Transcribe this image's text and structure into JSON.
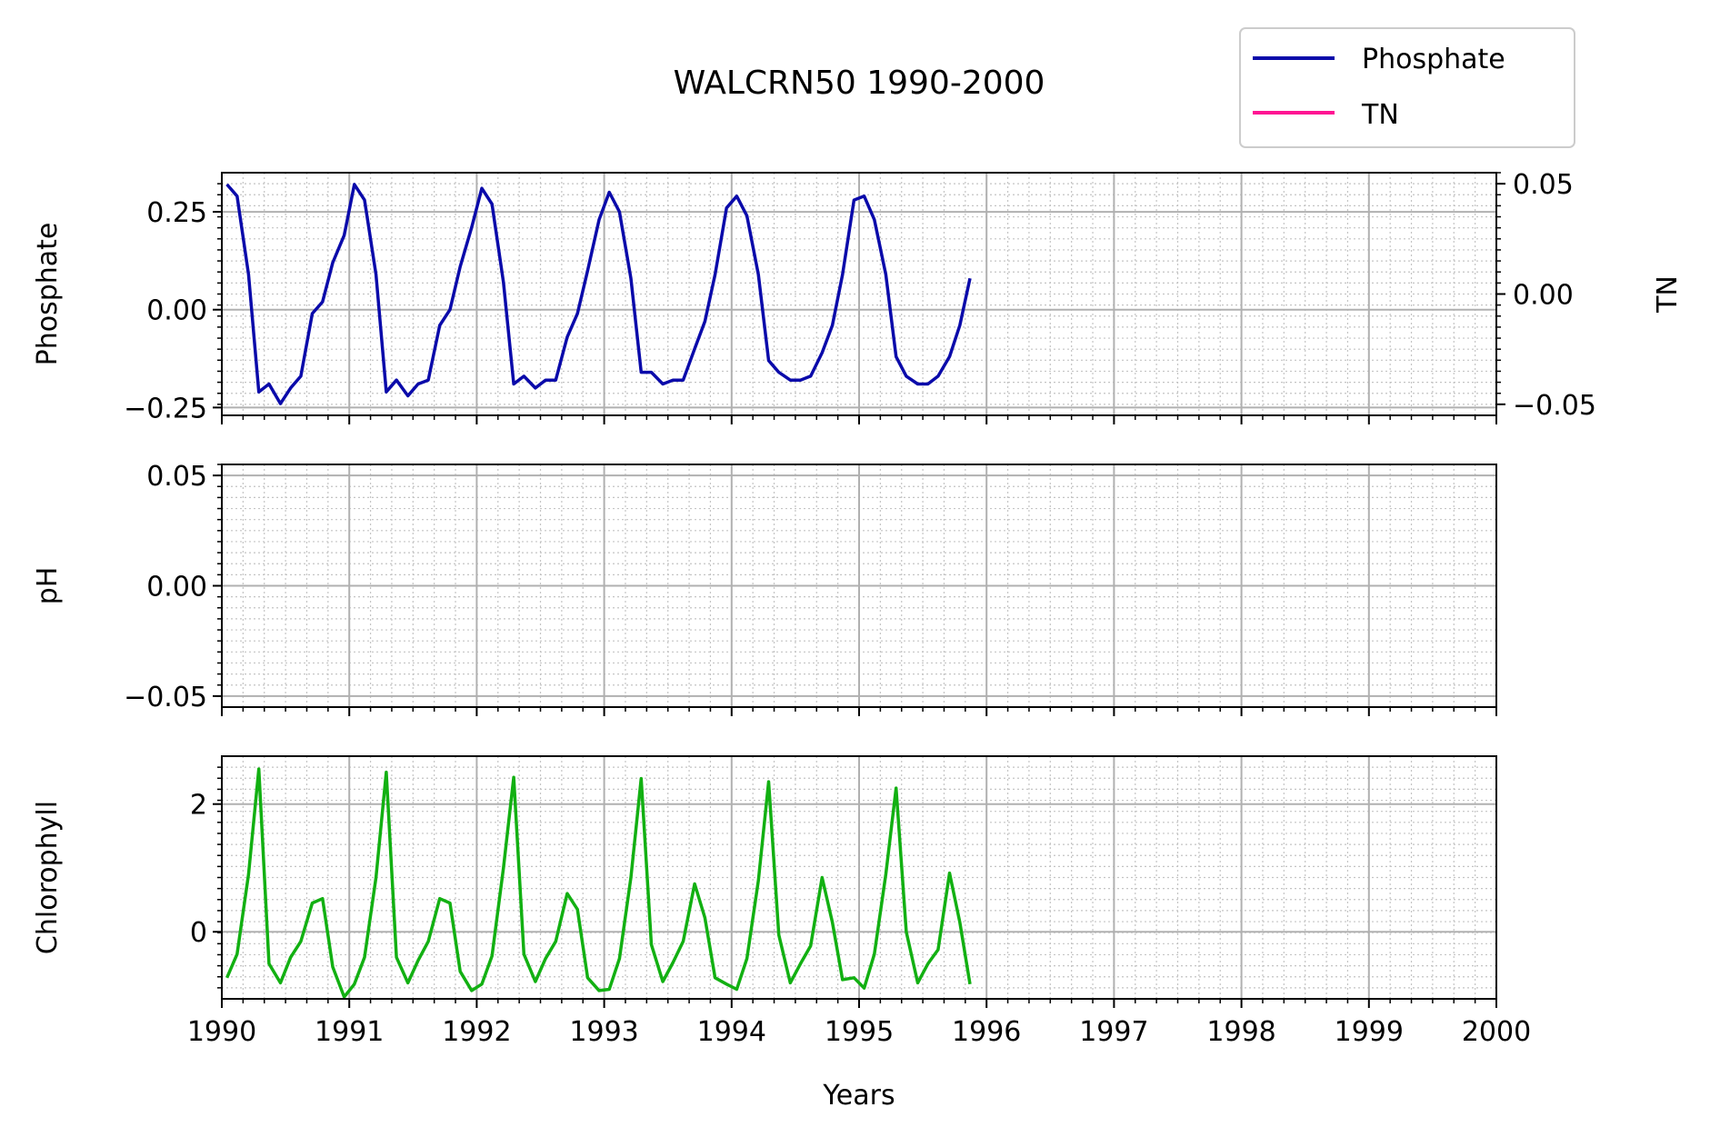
{
  "chart_data": {
    "type": "line",
    "title": "WALCRN50 1990-2000",
    "xlabel": "Years",
    "xlim": [
      1990,
      2000
    ],
    "xticks": [
      "1990",
      "1991",
      "1992",
      "1993",
      "1994",
      "1995",
      "1996",
      "1997",
      "1998",
      "1999",
      "2000"
    ],
    "legend": {
      "placement": "upper-right, above plots",
      "entries": [
        {
          "name": "Phosphate",
          "color": "#0a0aaa"
        },
        {
          "name": "TN",
          "color": "#ff1493"
        }
      ]
    },
    "panels": [
      {
        "ylabel": "Phosphate",
        "ylim": [
          -0.27,
          0.35
        ],
        "yticks": [
          {
            "v": 0.25,
            "label": "0.25"
          },
          {
            "v": 0.0,
            "label": "0.00"
          },
          {
            "v": -0.25,
            "label": "−0.25"
          }
        ],
        "right_axis": {
          "ylabel": "TN",
          "ylim": [
            -0.055,
            0.055
          ],
          "yticks": [
            {
              "v": 0.05,
              "label": "0.05"
            },
            {
              "v": 0.0,
              "label": "0.00"
            },
            {
              "v": -0.05,
              "label": "−0.05"
            }
          ]
        },
        "series": [
          {
            "name": "Phosphate",
            "color": "#0a0aaa",
            "x": [
              1990.04,
              1990.12,
              1990.21,
              1990.29,
              1990.37,
              1990.46,
              1990.54,
              1990.62,
              1990.71,
              1990.79,
              1990.87,
              1990.96,
              1991.04,
              1991.12,
              1991.21,
              1991.29,
              1991.37,
              1991.46,
              1991.54,
              1991.62,
              1991.71,
              1991.79,
              1991.87,
              1991.96,
              1992.04,
              1992.12,
              1992.21,
              1992.29,
              1992.37,
              1992.46,
              1992.54,
              1992.62,
              1992.71,
              1992.79,
              1992.87,
              1992.96,
              1993.04,
              1993.12,
              1993.21,
              1993.29,
              1993.37,
              1993.46,
              1993.54,
              1993.62,
              1993.71,
              1993.79,
              1993.87,
              1993.96,
              1994.04,
              1994.12,
              1994.21,
              1994.29,
              1994.37,
              1994.46,
              1994.54,
              1994.62,
              1994.71,
              1994.79,
              1994.87,
              1994.96,
              1995.04,
              1995.12,
              1995.21,
              1995.29,
              1995.37,
              1995.46,
              1995.54,
              1995.62,
              1995.71,
              1995.79,
              1995.87,
              1995.96
            ],
            "values": [
              0.32,
              0.29,
              0.09,
              -0.21,
              -0.19,
              -0.24,
              -0.2,
              -0.17,
              -0.01,
              0.02,
              0.12,
              0.19,
              0.32,
              0.28,
              0.09,
              -0.21,
              -0.18,
              -0.22,
              -0.19,
              -0.18,
              -0.04,
              0.0,
              0.11,
              0.21,
              0.31,
              0.27,
              0.07,
              -0.19,
              -0.17,
              -0.2,
              -0.18,
              -0.18,
              -0.07,
              -0.01,
              0.1,
              0.23,
              0.3,
              0.25,
              0.08,
              -0.16,
              -0.16,
              -0.19,
              -0.18,
              -0.18,
              -0.1,
              -0.03,
              0.09,
              0.26,
              0.29,
              0.24,
              0.09,
              -0.13,
              -0.16,
              -0.18,
              -0.18,
              -0.17,
              -0.11,
              -0.04,
              0.09,
              0.28,
              0.29,
              0.23,
              0.09,
              -0.12,
              -0.17,
              -0.19,
              -0.19,
              -0.17,
              -0.12,
              -0.04,
              0.08,
              null
            ]
          },
          {
            "name": "TN",
            "color": "#ff1493",
            "x": [],
            "values": []
          }
        ]
      },
      {
        "ylabel": "pH",
        "ylim": [
          -0.055,
          0.055
        ],
        "yticks": [
          {
            "v": 0.05,
            "label": "0.05"
          },
          {
            "v": 0.0,
            "label": "0.00"
          },
          {
            "v": -0.05,
            "label": "−0.05"
          }
        ],
        "series": []
      },
      {
        "ylabel": "Chlorophyll",
        "ylim": [
          -1.05,
          2.75
        ],
        "yticks": [
          {
            "v": 2,
            "label": "2"
          },
          {
            "v": 0,
            "label": "0"
          }
        ],
        "series": [
          {
            "name": "Chlorophyll",
            "color": "#12b012",
            "x": [
              1990.04,
              1990.12,
              1990.21,
              1990.29,
              1990.37,
              1990.46,
              1990.54,
              1990.62,
              1990.71,
              1990.79,
              1990.87,
              1990.96,
              1991.04,
              1991.12,
              1991.21,
              1991.29,
              1991.37,
              1991.46,
              1991.54,
              1991.62,
              1991.71,
              1991.79,
              1991.87,
              1991.96,
              1992.04,
              1992.12,
              1992.21,
              1992.29,
              1992.37,
              1992.46,
              1992.54,
              1992.62,
              1992.71,
              1992.79,
              1992.87,
              1992.96,
              1993.04,
              1993.12,
              1993.21,
              1993.29,
              1993.37,
              1993.46,
              1993.54,
              1993.62,
              1993.71,
              1993.79,
              1993.87,
              1993.96,
              1994.04,
              1994.12,
              1994.21,
              1994.29,
              1994.37,
              1994.46,
              1994.54,
              1994.62,
              1994.71,
              1994.79,
              1994.87,
              1994.96,
              1995.04,
              1995.12,
              1995.21,
              1995.29,
              1995.37,
              1995.46,
              1995.54,
              1995.62,
              1995.71,
              1995.79,
              1995.87,
              1995.96
            ],
            "values": [
              -0.72,
              -0.35,
              0.9,
              2.55,
              -0.5,
              -0.8,
              -0.4,
              -0.15,
              0.45,
              0.52,
              -0.55,
              -1.02,
              -0.82,
              -0.4,
              0.85,
              2.5,
              -0.4,
              -0.8,
              -0.45,
              -0.15,
              0.52,
              0.45,
              -0.62,
              -0.92,
              -0.82,
              -0.38,
              1.0,
              2.42,
              -0.35,
              -0.78,
              -0.42,
              -0.15,
              0.6,
              0.35,
              -0.72,
              -0.92,
              -0.9,
              -0.42,
              0.85,
              2.4,
              -0.2,
              -0.78,
              -0.48,
              -0.15,
              0.75,
              0.22,
              -0.72,
              -0.82,
              -0.9,
              -0.42,
              0.8,
              2.35,
              -0.05,
              -0.8,
              -0.5,
              -0.22,
              0.85,
              0.15,
              -0.75,
              -0.72,
              -0.88,
              -0.35,
              0.9,
              2.25,
              0.0,
              -0.8,
              -0.5,
              -0.28,
              0.92,
              0.15,
              -0.82,
              null
            ]
          }
        ]
      }
    ]
  }
}
